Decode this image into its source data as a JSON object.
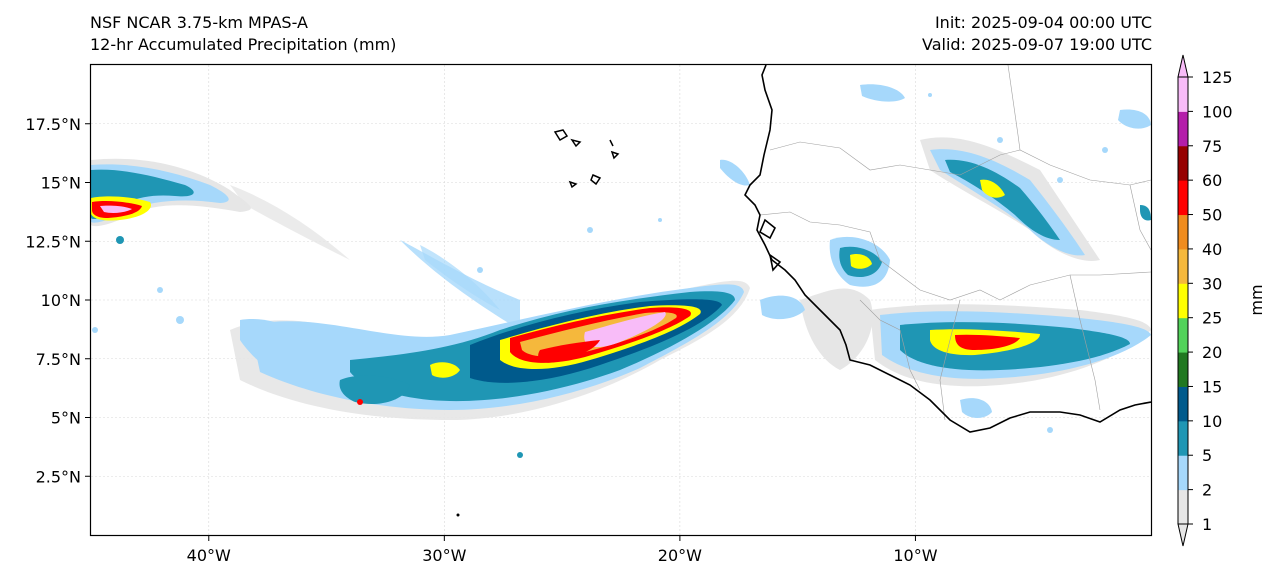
{
  "header": {
    "model_line": "NSF NCAR 3.75-km MPAS-A",
    "field_line": "12-hr Accumulated Precipitation (mm)",
    "init_line": "Init: 2025-09-04 00:00 UTC",
    "valid_line": "Valid: 2025-09-07 19:00 UTC"
  },
  "map_axes": {
    "lon_range": [
      -45,
      0
    ],
    "lat_range": [
      0,
      20
    ],
    "lon_ticks": [
      "40°W",
      "30°W",
      "20°W",
      "10°W"
    ],
    "lat_ticks": [
      "2.5°N",
      "5°N",
      "7.5°N",
      "10°N",
      "12.5°N",
      "15°N",
      "17.5°N"
    ],
    "gridlines": true
  },
  "colorbar": {
    "label": "mm",
    "levels": [
      "1",
      "2",
      "5",
      "10",
      "15",
      "20",
      "25",
      "30",
      "40",
      "50",
      "60",
      "75",
      "100",
      "125"
    ],
    "colors": [
      "#e6e6e6",
      "#a6d8fb",
      "#1f96b4",
      "#005a8c",
      "#217821",
      "#52d35a",
      "#ffff00",
      "#f5b83c",
      "#f08c1e",
      "#ff0000",
      "#960000",
      "#b41eaa",
      "#f8bcf8"
    ],
    "extend": "both"
  },
  "precip_colors": {
    "light": "#e6e6e6",
    "blue": "#a6d8fb",
    "teal": "#1f96b4",
    "dark": "#005a8c",
    "green": "#217821",
    "yellow": "#ffff00",
    "orange": "#f5b83c",
    "red": "#ff0000",
    "maroon": "#960000",
    "pink": "#f8bcf8"
  }
}
